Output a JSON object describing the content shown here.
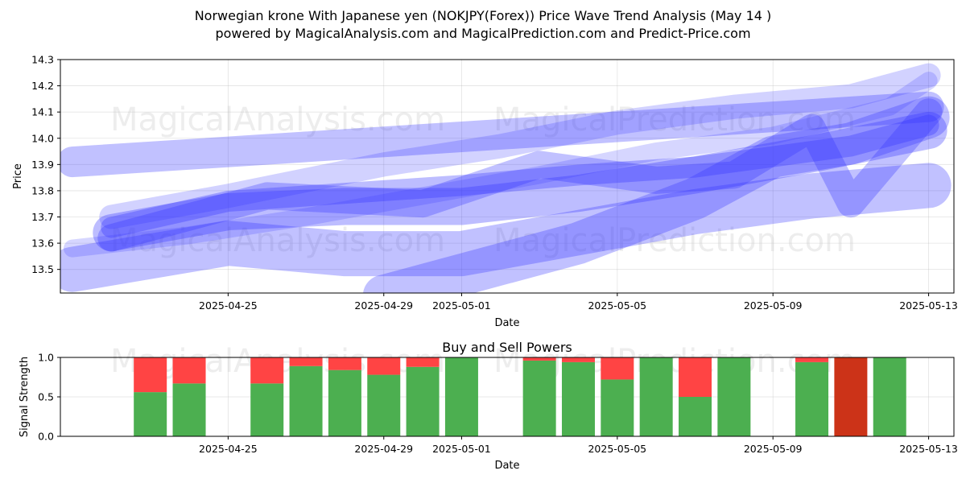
{
  "title_line1": "Norwegian krone With Japanese yen (NOKJPY(Forex)) Price Wave Trend Analysis (May 14 )",
  "title_line2": "powered by MagicalAnalysis.com and MagicalPrediction.com and Predict-Price.com",
  "watermarks": [
    "MagicalAnalysis.com",
    "MagicalPrediction.com"
  ],
  "colors": {
    "wave": "#3333ff",
    "buy": "#4caf50",
    "sell": "#ff4444",
    "sell_dark": "#cc3318"
  },
  "chart_data": [
    {
      "type": "area",
      "title": "",
      "xlabel": "Date",
      "ylabel": "Price",
      "ylim": [
        13.41,
        14.3
      ],
      "xlim": [
        "2025-04-21",
        "2025-05-14"
      ],
      "x_ticks": [
        "2025-04-25",
        "2025-04-29",
        "2025-05-01",
        "2025-05-05",
        "2025-05-09",
        "2025-05-13"
      ],
      "y_ticks": [
        13.5,
        13.6,
        13.7,
        13.8,
        13.9,
        14.0,
        14.1,
        14.2,
        14.3
      ],
      "grid": true,
      "series": [
        {
          "x": [
            "2025-04-21",
            "2025-05-13"
          ],
          "values": [
            13.91,
            14.12
          ]
        },
        {
          "x": [
            "2025-04-22",
            "2025-04-25",
            "2025-04-28",
            "2025-05-01",
            "2025-05-04",
            "2025-05-07",
            "2025-05-10",
            "2025-05-13"
          ],
          "values": [
            13.64,
            13.72,
            13.74,
            13.74,
            13.79,
            13.86,
            13.94,
            14.03
          ]
        },
        {
          "x": [
            "2025-04-21",
            "2025-04-25",
            "2025-04-28",
            "2025-05-01",
            "2025-05-04",
            "2025-05-07",
            "2025-05-10",
            "2025-05-13"
          ],
          "values": [
            13.5,
            13.6,
            13.56,
            13.56,
            13.64,
            13.72,
            13.78,
            13.82
          ]
        },
        {
          "x": [
            "2025-04-22",
            "2025-04-25",
            "2025-04-29",
            "2025-05-02",
            "2025-05-05",
            "2025-05-08",
            "2025-05-11",
            "2025-05-13"
          ],
          "values": [
            13.7,
            13.78,
            13.9,
            13.97,
            14.06,
            14.12,
            14.16,
            14.24
          ]
        },
        {
          "x": [
            "2025-04-22",
            "2025-04-26",
            "2025-04-30",
            "2025-05-03",
            "2025-05-06",
            "2025-05-08",
            "2025-05-10",
            "2025-05-11",
            "2025-05-13"
          ],
          "values": [
            13.62,
            13.78,
            13.75,
            13.9,
            13.84,
            13.86,
            14.04,
            13.75,
            14.1
          ]
        },
        {
          "x": [
            "2025-04-22",
            "2025-04-25",
            "2025-04-29",
            "2025-05-01",
            "2025-05-04",
            "2025-05-07",
            "2025-05-09",
            "2025-05-11",
            "2025-05-13"
          ],
          "values": [
            13.66,
            13.76,
            13.8,
            13.82,
            13.86,
            13.89,
            13.93,
            13.97,
            14.05
          ]
        },
        {
          "x": [
            "2025-04-29",
            "2025-05-02",
            "2025-05-04",
            "2025-05-07",
            "2025-05-09",
            "2025-05-11",
            "2025-05-13"
          ],
          "values": [
            13.4,
            13.52,
            13.6,
            13.77,
            13.93,
            13.98,
            14.08
          ]
        },
        {
          "x": [
            "2025-04-21",
            "2025-04-24",
            "2025-04-27",
            "2025-04-30",
            "2025-05-03",
            "2025-05-06",
            "2025-05-09",
            "2025-05-12",
            "2025-05-13"
          ],
          "values": [
            13.58,
            13.63,
            13.7,
            13.78,
            13.86,
            13.95,
            14.01,
            14.12,
            14.22
          ]
        }
      ]
    },
    {
      "type": "bar",
      "title": "Buy and Sell Powers",
      "xlabel": "Date",
      "ylabel": "Signal Strength",
      "ylim": [
        0,
        1.0
      ],
      "xlim": [
        "2025-04-21",
        "2025-05-14"
      ],
      "x_ticks": [
        "2025-04-25",
        "2025-04-29",
        "2025-05-01",
        "2025-05-05",
        "2025-05-09",
        "2025-05-13"
      ],
      "y_ticks": [
        "0.0",
        "0.5",
        "1.0"
      ],
      "grid": true,
      "categories": [
        "2025-04-23",
        "2025-04-24",
        "2025-04-26",
        "2025-04-27",
        "2025-04-28",
        "2025-04-29",
        "2025-04-30",
        "2025-05-01",
        "2025-05-03",
        "2025-05-04",
        "2025-05-05",
        "2025-05-06",
        "2025-05-07",
        "2025-05-08",
        "2025-05-10",
        "2025-05-11",
        "2025-05-12"
      ],
      "series": [
        {
          "name": "Buy",
          "values": [
            0.56,
            0.67,
            0.67,
            0.89,
            0.84,
            0.78,
            0.88,
            1.0,
            0.96,
            0.94,
            0.72,
            1.0,
            0.5,
            1.0,
            0.94,
            0.0,
            1.0
          ]
        },
        {
          "name": "Sell",
          "values": [
            0.44,
            0.33,
            0.33,
            0.11,
            0.16,
            0.22,
            0.12,
            0.0,
            0.04,
            0.06,
            0.28,
            0.0,
            0.5,
            0.0,
            0.06,
            1.0,
            0.0
          ]
        }
      ]
    }
  ]
}
